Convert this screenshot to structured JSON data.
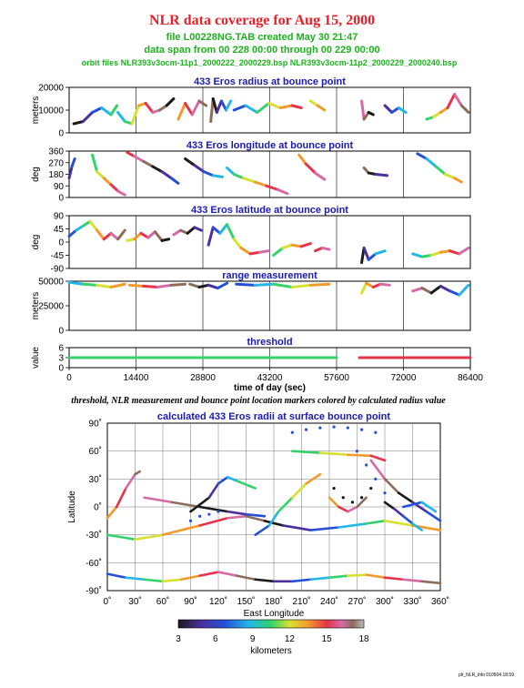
{
  "header": {
    "title": "NLR data coverage for Aug 15, 2000",
    "file_line": "file L00228NG.TAB created May 30 21:47",
    "span_line": "data span from 00 228 00:00 through 00 229 00:00",
    "orbit_line": "orbit files NLR393v3ocm-11p1_2000222_2000229.bsp NLR393v3ocm-11p2_2000229_2000240.bsp"
  },
  "caption": "threshold, NLR measurement and bounce point location markers colored by calculated radius value",
  "footer_stamp": "plt_NLR_info 010504 18:59",
  "colors": {
    "title": "#e8202a",
    "subtitle": "#1db21d",
    "panel_title": "#1a1ab4"
  },
  "chart_data": [
    {
      "type": "line",
      "title": "433 Eros radius at bounce point",
      "ylabel": "meters",
      "ylim": [
        0,
        20000
      ],
      "yticks": [
        "20000",
        "10000",
        "0"
      ],
      "xlim": [
        0,
        86400
      ],
      "x_gridlines": [
        14400,
        28800,
        43200,
        57600,
        72000
      ],
      "color_by": "calculated radius",
      "segments": [
        {
          "x": [
            1000,
            3000,
            5000,
            7000,
            9000,
            10300
          ],
          "y": [
            4000,
            5000,
            9000,
            11000,
            8000,
            12000
          ]
        },
        {
          "x": [
            10500,
            12000,
            13500,
            15000,
            16500,
            18000,
            19500,
            21000,
            22500
          ],
          "y": [
            9000,
            5000,
            4000,
            12000,
            13000,
            9000,
            10000,
            12000,
            15000
          ]
        },
        {
          "x": [
            23500,
            25000,
            26500,
            28000,
            29500
          ],
          "y": [
            6000,
            13000,
            8000,
            14000,
            12000
          ]
        },
        {
          "x": [
            30500,
            31000,
            31800,
            32800,
            33800,
            34800
          ],
          "y": [
            5000,
            15000,
            9000,
            14000,
            10000,
            14000
          ]
        },
        {
          "x": [
            35500,
            38000,
            40500,
            43000,
            45500,
            48000,
            50000
          ],
          "y": [
            10000,
            12000,
            9000,
            13000,
            11000,
            12000,
            11000
          ]
        },
        {
          "x": [
            52000,
            53500,
            55000
          ],
          "y": [
            14000,
            12000,
            10000
          ]
        },
        {
          "x": [
            63000,
            63500,
            64500,
            65500
          ],
          "y": [
            14000,
            6000,
            9000,
            8000
          ]
        },
        {
          "x": [
            68000,
            69500,
            71000,
            72500
          ],
          "y": [
            12000,
            9000,
            11000,
            9000
          ]
        },
        {
          "x": [
            77000,
            78500,
            80000,
            81500,
            83000,
            84500,
            86000
          ],
          "y": [
            6000,
            7000,
            9000,
            11000,
            17000,
            12000,
            9000
          ]
        }
      ]
    },
    {
      "type": "line",
      "title": "433 Eros longitude at bounce point",
      "ylabel": "deg",
      "ylim": [
        0,
        360
      ],
      "yticks": [
        "360",
        "270",
        "180",
        "90",
        "0"
      ],
      "xlim": [
        0,
        86400
      ],
      "segments": [
        {
          "x": [
            0,
            600,
            1200
          ],
          "y": [
            150,
            240,
            300
          ]
        },
        {
          "x": [
            5000,
            6000,
            7500,
            9000,
            10500,
            12000
          ],
          "y": [
            330,
            200,
            150,
            100,
            50,
            20
          ]
        },
        {
          "x": [
            12500,
            14000,
            16000,
            18000,
            20000,
            22000,
            23500
          ],
          "y": [
            350,
            320,
            280,
            240,
            200,
            150,
            110
          ]
        },
        {
          "x": [
            25000,
            27000,
            29000,
            31000,
            33000
          ],
          "y": [
            300,
            250,
            200,
            170,
            160
          ]
        },
        {
          "x": [
            34000,
            35500,
            37500,
            40000,
            42500,
            45000,
            47000
          ],
          "y": [
            230,
            180,
            150,
            120,
            90,
            60,
            30
          ]
        },
        {
          "x": [
            49500,
            51000,
            53000,
            55000
          ],
          "y": [
            330,
            260,
            190,
            140
          ]
        },
        {
          "x": [
            63500,
            64500,
            66000,
            68500
          ],
          "y": [
            230,
            190,
            180,
            170
          ]
        },
        {
          "x": [
            75000,
            77000,
            79000,
            81000,
            83000,
            84500
          ],
          "y": [
            340,
            300,
            240,
            180,
            150,
            120
          ]
        }
      ]
    },
    {
      "type": "line",
      "title": "433 Eros latitude at bounce point",
      "ylabel": "deg",
      "ylim": [
        -90,
        90
      ],
      "yticks": [
        "90",
        "45",
        "0",
        "-45",
        "-90"
      ],
      "xlim": [
        0,
        86400
      ],
      "segments": [
        {
          "x": [
            0,
            1500,
            3000,
            4500,
            6000,
            7500,
            9000,
            10500,
            12000
          ],
          "y": [
            20,
            40,
            55,
            70,
            40,
            10,
            30,
            10,
            40
          ]
        },
        {
          "x": [
            12500,
            14000,
            15500,
            17000,
            18500,
            20000,
            21500
          ],
          "y": [
            5,
            10,
            30,
            15,
            35,
            5,
            10
          ]
        },
        {
          "x": [
            22500,
            24000,
            25500,
            27000,
            28500
          ],
          "y": [
            25,
            40,
            30,
            50,
            40
          ]
        },
        {
          "x": [
            30000,
            31000,
            32500,
            34000,
            35500,
            37000,
            39000,
            41000,
            43000
          ],
          "y": [
            -10,
            50,
            30,
            60,
            10,
            -20,
            -40,
            -35,
            -30
          ]
        },
        {
          "x": [
            44000,
            46000,
            48000,
            50000,
            52000
          ],
          "y": [
            -45,
            -20,
            -10,
            -15,
            -5
          ]
        },
        {
          "x": [
            53000,
            54500,
            56000
          ],
          "y": [
            -30,
            -20,
            -25
          ]
        },
        {
          "x": [
            63000,
            63500,
            64500,
            66000,
            68000
          ],
          "y": [
            -70,
            -20,
            -60,
            -40,
            -30
          ]
        },
        {
          "x": [
            74000,
            76000,
            78000,
            80000,
            82000,
            84000,
            86000
          ],
          "y": [
            -40,
            -50,
            -45,
            -35,
            -30,
            -40,
            -20
          ]
        }
      ]
    },
    {
      "type": "line",
      "title": "range measurement",
      "ylabel": "meters",
      "ylim": [
        0,
        50000
      ],
      "yticks": [
        "50000",
        "25000",
        "0"
      ],
      "xlim": [
        0,
        86400
      ],
      "segments": [
        {
          "x": [
            0,
            3000,
            6000,
            9000,
            12000
          ],
          "y": [
            49000,
            47000,
            46000,
            44000,
            47000
          ]
        },
        {
          "x": [
            13000,
            16000,
            19000,
            22000,
            25000
          ],
          "y": [
            46000,
            45000,
            44000,
            46000,
            47000
          ]
        },
        {
          "x": [
            26000,
            28000,
            30000,
            32000,
            34000
          ],
          "y": [
            47000,
            44000,
            46000,
            43000,
            48000
          ]
        },
        {
          "x": [
            36000,
            40000,
            44000,
            48000,
            52000,
            56000
          ],
          "y": [
            47000,
            46000,
            47000,
            44000,
            46000,
            47000
          ]
        },
        {
          "x": [
            63000,
            64000,
            65500,
            67000,
            69000
          ],
          "y": [
            38000,
            48000,
            44000,
            47000,
            46000
          ]
        },
        {
          "x": [
            74000,
            76000,
            78000,
            80000,
            82000,
            84000,
            86000
          ],
          "y": [
            40000,
            43000,
            38000,
            45000,
            40000,
            36000,
            46000
          ]
        }
      ]
    },
    {
      "type": "line",
      "title": "threshold",
      "ylabel": "value",
      "ylim": [
        0,
        6
      ],
      "yticks": [
        "6",
        "3",
        "0"
      ],
      "xlim": [
        0,
        86400
      ],
      "xlabel": "time of day (sec)",
      "xticks": [
        "0",
        "14400",
        "28800",
        "43200",
        "57600",
        "72000",
        "86400"
      ],
      "segments": [
        {
          "x": [
            0,
            57600
          ],
          "y": [
            3,
            3
          ]
        },
        {
          "x": [
            62500,
            86400
          ],
          "y": [
            3,
            3
          ]
        }
      ]
    },
    {
      "type": "scatter",
      "title": "calculated 433 Eros radii at surface bounce point",
      "xlabel": "East Longitude",
      "ylabel": "Latitude",
      "xlim": [
        0,
        360
      ],
      "ylim": [
        -90,
        90
      ],
      "xticks": [
        "0˚",
        "30˚",
        "60˚",
        "90˚",
        "120˚",
        "150˚",
        "180˚",
        "210˚",
        "240˚",
        "270˚",
        "300˚",
        "330˚",
        "360˚"
      ],
      "yticks": [
        "90˚",
        "60˚",
        "30˚",
        "0˚",
        "-30˚",
        "-60˚",
        "-90˚"
      ],
      "grid": true,
      "tracks": [
        {
          "lon": [
            0,
            20,
            40,
            60,
            80,
            100,
            120,
            140,
            160,
            180,
            200,
            220,
            240,
            260,
            280,
            300,
            320,
            340,
            360
          ],
          "lat": [
            -72,
            -76,
            -78,
            -80,
            -78,
            -74,
            -70,
            -74,
            -78,
            -80,
            -80,
            -78,
            -76,
            -74,
            -73,
            -76,
            -78,
            -80,
            -82
          ]
        },
        {
          "lon": [
            0,
            30,
            60,
            100,
            130,
            150,
            170,
            190,
            220,
            250,
            280,
            300,
            330,
            360
          ],
          "lat": [
            -30,
            -35,
            -30,
            -20,
            -12,
            -10,
            -15,
            -20,
            -25,
            -22,
            -18,
            -15,
            -20,
            -25
          ]
        },
        {
          "lon": [
            0,
            10,
            20,
            30,
            35
          ],
          "lat": [
            -12,
            0,
            20,
            35,
            38
          ]
        },
        {
          "lon": [
            40,
            70,
            100,
            130,
            150,
            170
          ],
          "lat": [
            10,
            5,
            0,
            -5,
            -8,
            -10
          ]
        },
        {
          "lon": [
            90,
            110,
            120,
            130,
            140,
            160
          ],
          "lat": [
            -5,
            10,
            25,
            32,
            28,
            20
          ]
        },
        {
          "lon": [
            160,
            175,
            185,
            200,
            215,
            230
          ],
          "lat": [
            -30,
            -20,
            -5,
            10,
            25,
            35
          ]
        },
        {
          "lon": [
            200,
            230,
            260,
            285,
            300
          ],
          "lat": [
            60,
            58,
            56,
            55,
            50
          ]
        },
        {
          "lon": [
            240,
            250,
            260,
            270,
            280
          ],
          "lat": [
            10,
            0,
            -5,
            0,
            10
          ]
        },
        {
          "lon": [
            285,
            300,
            315,
            330,
            345,
            360
          ],
          "lat": [
            50,
            30,
            15,
            5,
            -5,
            -15
          ]
        },
        {
          "lon": [
            300,
            310,
            320,
            330,
            340
          ],
          "lat": [
            5,
            -2,
            -10,
            -18,
            -25
          ]
        },
        {
          "lon": [
            320,
            340,
            355
          ],
          "lat": [
            0,
            5,
            -5
          ]
        }
      ],
      "dot_tracks": [
        {
          "lon": [
            200,
            215,
            230,
            245,
            260,
            275,
            290
          ],
          "lat": [
            80,
            83,
            85,
            86,
            85,
            83,
            80
          ]
        },
        {
          "lon": [
            270,
            280,
            290,
            300
          ],
          "lat": [
            60,
            45,
            30,
            15
          ]
        },
        {
          "lon": [
            245,
            255,
            265,
            275,
            285
          ],
          "lat": [
            20,
            10,
            5,
            10,
            20
          ]
        },
        {
          "lon": [
            90,
            100,
            110,
            120
          ],
          "lat": [
            -15,
            -10,
            -8,
            -5
          ]
        }
      ],
      "colorbar": {
        "label": "kilometers",
        "min": 3,
        "max": 18,
        "ticks": [
          "3",
          "6",
          "9",
          "12",
          "15",
          "18"
        ]
      }
    }
  ]
}
